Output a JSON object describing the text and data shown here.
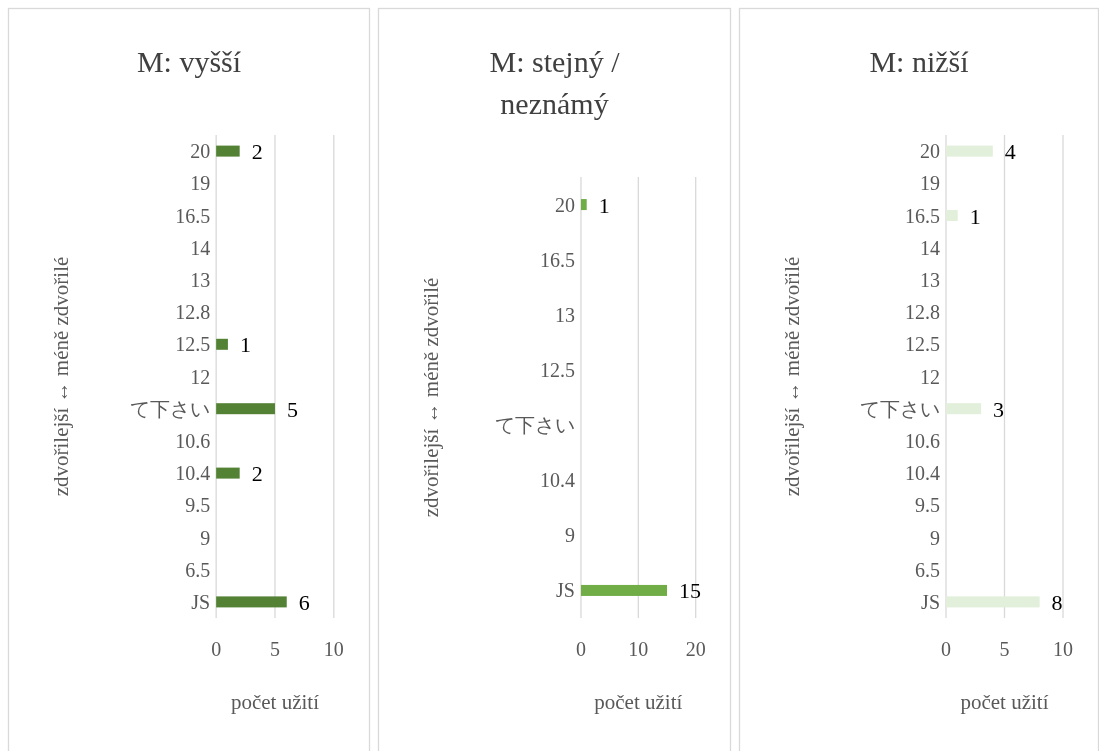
{
  "chart_data": [
    {
      "type": "bar",
      "orientation": "horizontal",
      "title": "M: vyšší",
      "ylabel": "zdvořilejší ↔ méně zdvořilé",
      "xlabel": "počet užití",
      "categories": [
        "20",
        "19",
        "16.5",
        "14",
        "13",
        "12.8",
        "12.5",
        "12",
        "て下さい",
        "10.6",
        "10.4",
        "9.5",
        "9",
        "6.5",
        "JS"
      ],
      "series": [
        {
          "color": "#548235",
          "values": [
            2,
            null,
            null,
            null,
            null,
            null,
            1,
            null,
            5,
            null,
            2,
            null,
            null,
            null,
            6
          ]
        }
      ],
      "xlim": [
        0,
        10
      ],
      "xticks": [
        0,
        5,
        10
      ],
      "grid": "x",
      "data_labels": true
    },
    {
      "type": "bar",
      "orientation": "horizontal",
      "title": "M: stejný / neznámý",
      "ylabel": "zdvořilejší ↔ méně zdvořilé",
      "xlabel": "počet užití",
      "categories": [
        "20",
        "16.5",
        "13",
        "12.5",
        "て下さい",
        "10.4",
        "9",
        "JS"
      ],
      "series": [
        {
          "color": "#70ad47",
          "values": [
            1,
            null,
            null,
            null,
            null,
            null,
            null,
            15
          ]
        }
      ],
      "xlim": [
        0,
        20
      ],
      "xticks": [
        0,
        10,
        20
      ],
      "grid": "x",
      "data_labels": true
    },
    {
      "type": "bar",
      "orientation": "horizontal",
      "title": "M: nižší",
      "ylabel": "zdvořilejší ↔ méně zdvořilé",
      "xlabel": "počet užití",
      "categories": [
        "20",
        "19",
        "16.5",
        "14",
        "13",
        "12.8",
        "12.5",
        "12",
        "て下さい",
        "10.6",
        "10.4",
        "9.5",
        "9",
        "6.5",
        "JS"
      ],
      "series": [
        {
          "color": "#e2efda",
          "values": [
            4,
            null,
            1,
            null,
            null,
            null,
            null,
            null,
            3,
            null,
            null,
            null,
            null,
            null,
            8
          ]
        }
      ],
      "xlim": [
        0,
        10
      ],
      "xticks": [
        0,
        5,
        10
      ],
      "grid": "x",
      "data_labels": true
    }
  ]
}
